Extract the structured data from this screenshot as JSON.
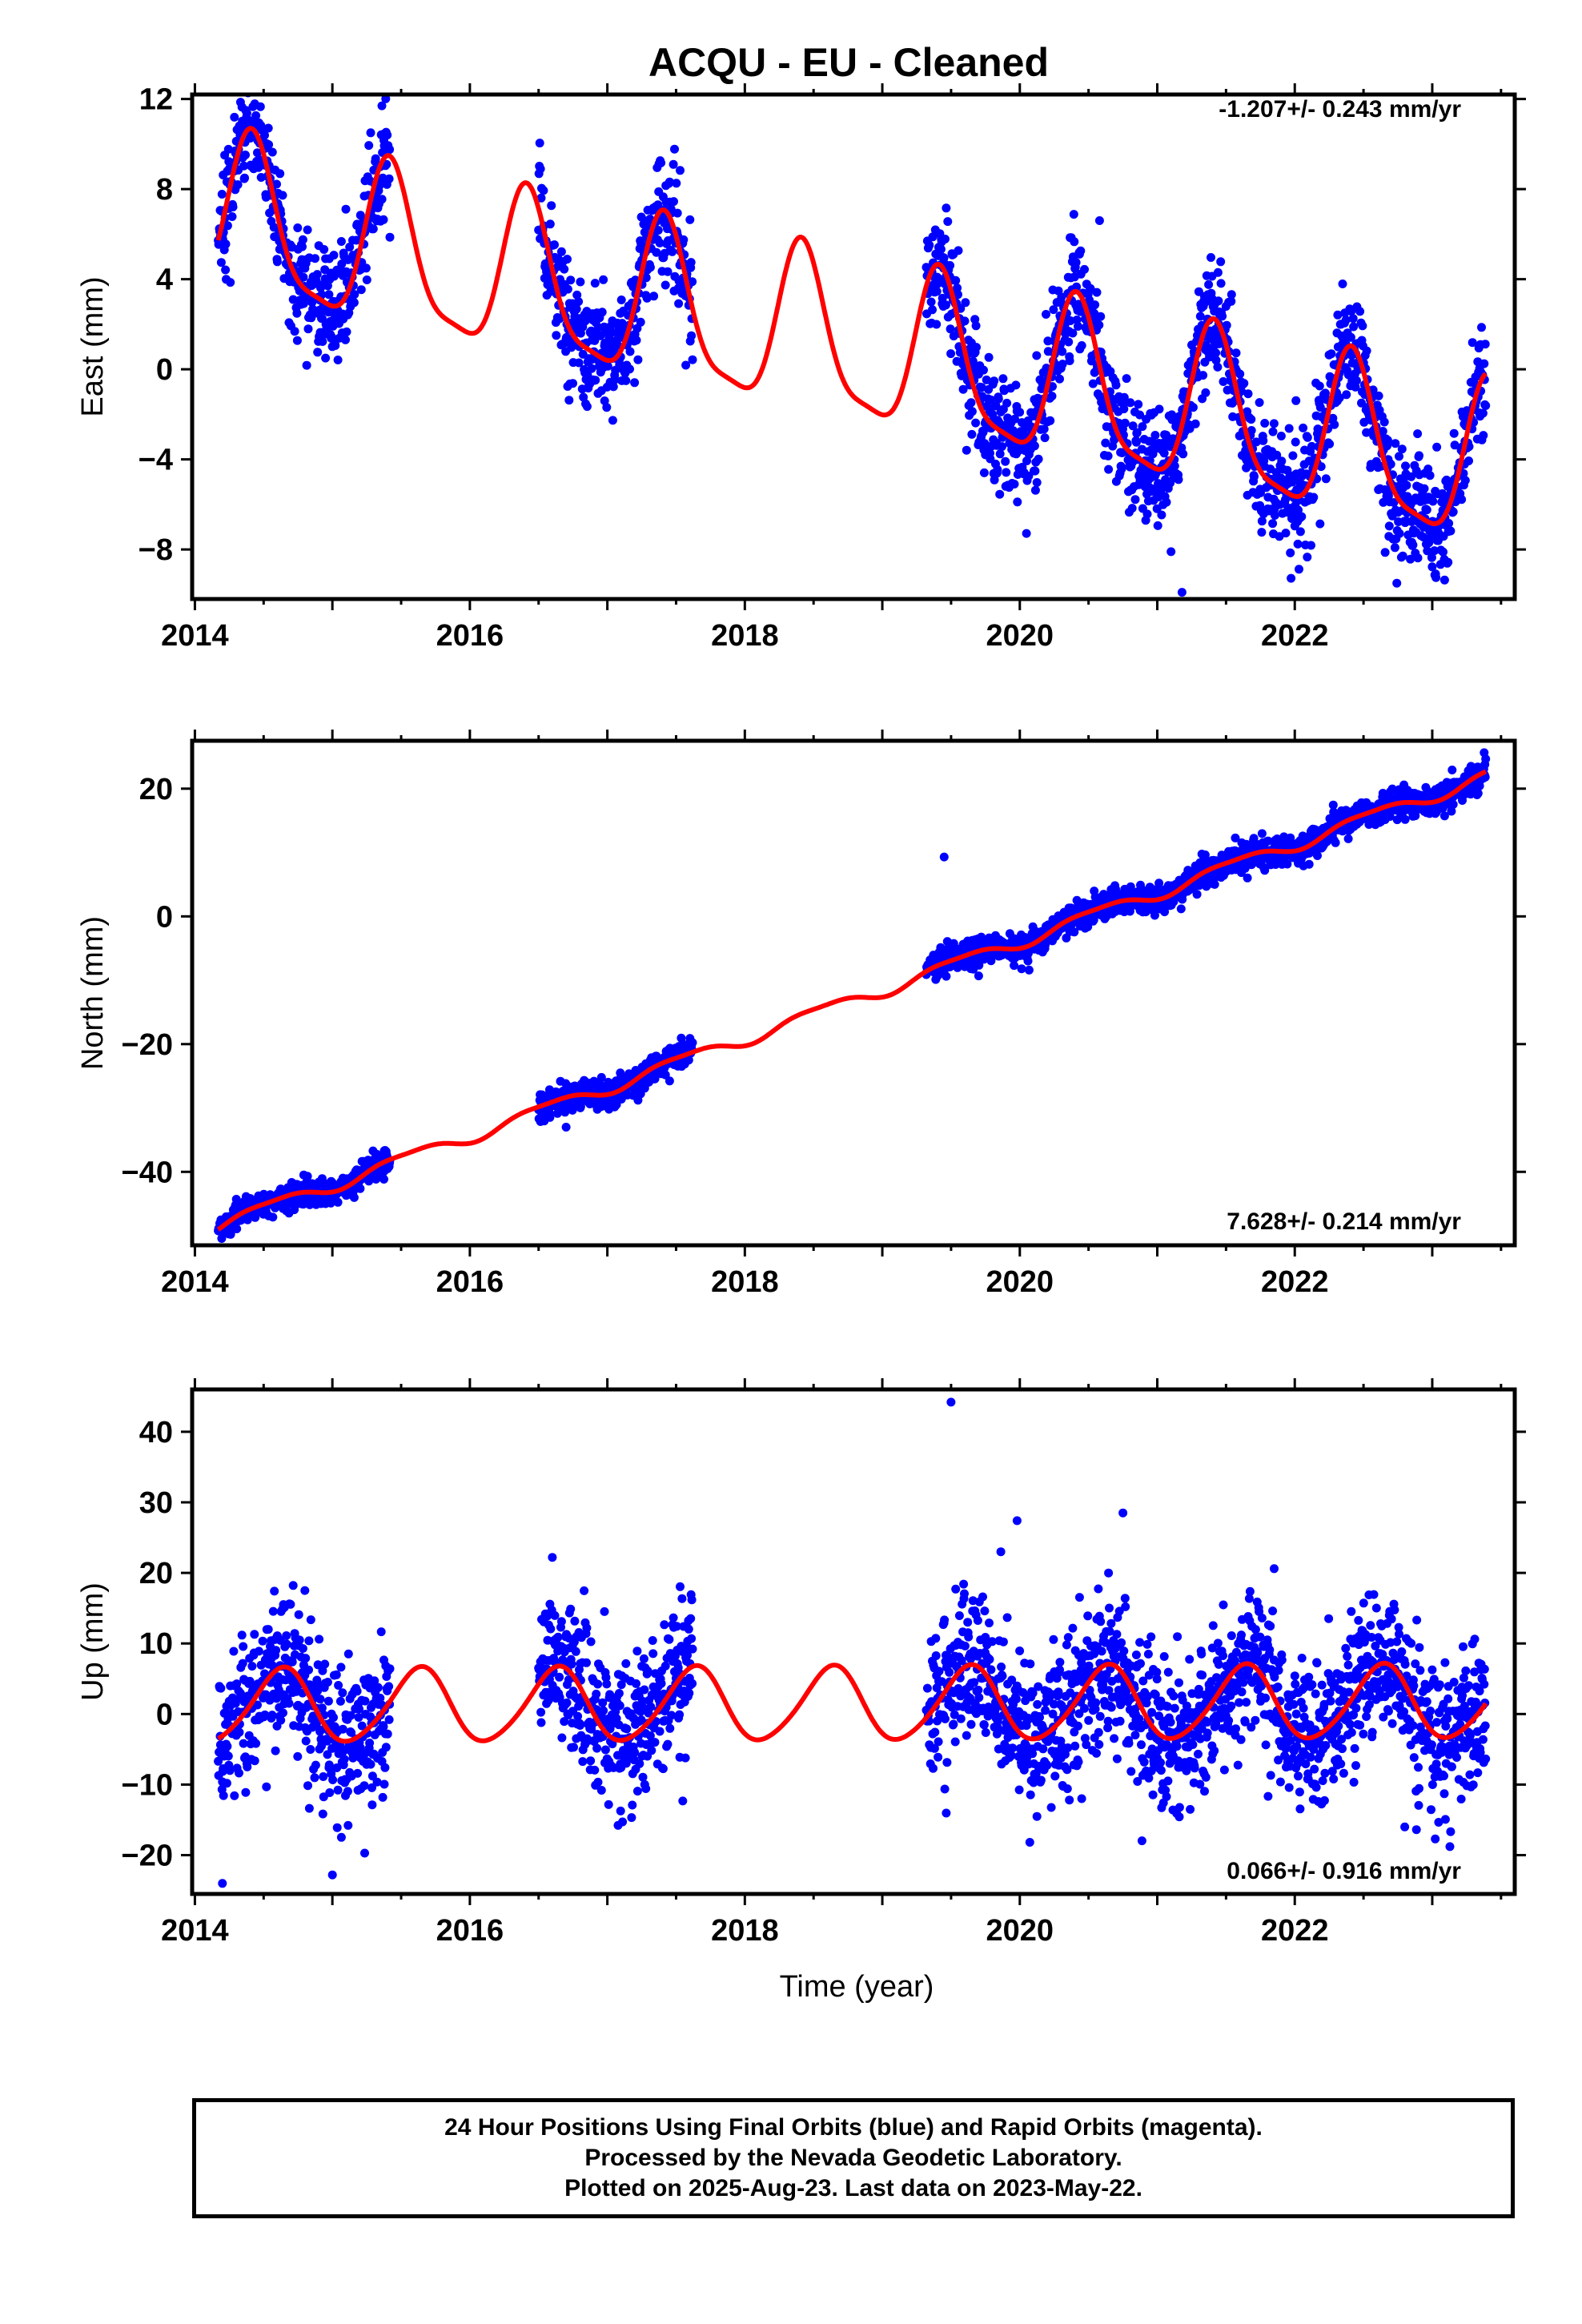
{
  "title": "ACQU  - EU - Cleaned",
  "colors": {
    "data": "#0000ff",
    "model": "#ff0000",
    "frame": "#000000"
  },
  "chart_data": [
    {
      "type": "scatter",
      "ylabel": "East (mm)",
      "xlabel": "",
      "rate": "-1.207+/- 0.243 mm/yr",
      "xlim": [
        2013.98,
        2023.6
      ],
      "ylim": [
        -10.2,
        12.2
      ],
      "xticks": [
        2014,
        2016,
        2018,
        2020,
        2022
      ],
      "xtick_labels": [
        "2014",
        "2016",
        "2018",
        "2020",
        "2022"
      ],
      "yticks": [
        -8,
        -4,
        0,
        4,
        8,
        12
      ],
      "ytick_labels": [
        "−8",
        "−4",
        "0",
        "4",
        "8",
        "12"
      ],
      "model": {
        "intercept": 6.6,
        "trend_mm_per_yr": -1.207,
        "annual_amp": 3.5,
        "annual_phase_peak": 0.42,
        "semiannual_amp": 0.9,
        "semiannual_phase_peak": 0.4
      },
      "data_segments": [
        [
          2014.17,
          2015.42
        ],
        [
          2016.5,
          2017.62
        ],
        [
          2019.32,
          2023.39
        ]
      ],
      "noise_sigma": 1.3,
      "outliers": [
        [
          2015.36,
          11.7
        ],
        [
          2021.18,
          -9.9
        ],
        [
          2021.1,
          -8.1
        ],
        [
          2014.95,
          0.5
        ],
        [
          2020.58,
          6.6
        ],
        [
          2016.98,
          -1.4
        ]
      ]
    },
    {
      "type": "scatter",
      "ylabel": "North (mm)",
      "xlabel": "",
      "rate": "7.628+/- 0.214 mm/yr",
      "xlim": [
        2013.98,
        2023.6
      ],
      "ylim": [
        -51.5,
        27.5
      ],
      "xticks": [
        2014,
        2016,
        2018,
        2020,
        2022
      ],
      "xtick_labels": [
        "2014",
        "2016",
        "2018",
        "2020",
        "2022"
      ],
      "yticks": [
        -40,
        -20,
        0,
        20
      ],
      "ytick_labels": [
        "−40",
        "−20",
        "0",
        "20"
      ],
      "model": {
        "intercept": -48.3,
        "trend_mm_per_yr": 7.628,
        "annual_amp": 1.0,
        "annual_phase_peak": 0.55,
        "semiannual_amp": 0.3,
        "semiannual_phase_peak": 0.3
      },
      "data_segments": [
        [
          2014.17,
          2015.42
        ],
        [
          2016.5,
          2017.62
        ],
        [
          2019.32,
          2023.39
        ]
      ],
      "noise_sigma": 1.1,
      "outliers": [
        [
          2019.45,
          9.3
        ],
        [
          2016.7,
          -33.0
        ]
      ]
    },
    {
      "type": "scatter",
      "ylabel": "Up (mm)",
      "xlabel": "Time (year)",
      "rate": "0.066+/- 0.916 mm/yr",
      "xlim": [
        2013.98,
        2023.6
      ],
      "ylim": [
        -25.5,
        46.0
      ],
      "xticks": [
        2014,
        2016,
        2018,
        2020,
        2022
      ],
      "xtick_labels": [
        "2014",
        "2016",
        "2018",
        "2020",
        "2022"
      ],
      "yticks": [
        -20,
        -10,
        0,
        10,
        20,
        30,
        40
      ],
      "ytick_labels": [
        "−20",
        "−10",
        "0",
        "10",
        "20",
        "30",
        "40"
      ],
      "model": {
        "intercept": 1.0,
        "trend_mm_per_yr": 0.066,
        "annual_amp": 5.2,
        "annual_phase_peak": 0.63,
        "semiannual_amp": 0.6,
        "semiannual_phase_peak": 0.2
      },
      "data_segments": [
        [
          2014.17,
          2015.42
        ],
        [
          2016.5,
          2017.62
        ],
        [
          2019.32,
          2023.39
        ]
      ],
      "noise_sigma": 5.2,
      "outliers": [
        [
          2019.5,
          44.2
        ],
        [
          2014.2,
          -24.0
        ],
        [
          2020.75,
          28.5
        ],
        [
          2016.6,
          22.2
        ],
        [
          2019.98,
          27.4
        ],
        [
          2014.8,
          17.5
        ],
        [
          2015.0,
          -22.8
        ],
        [
          2021.85,
          20.6
        ],
        [
          2020.45,
          -12.0
        ],
        [
          2022.8,
          -16.0
        ]
      ]
    }
  ],
  "footer": {
    "line1": "24 Hour Positions Using Final Orbits (blue) and Rapid Orbits (magenta).",
    "line2": "Processed by the Nevada Geodetic Laboratory.",
    "line3": "Plotted on 2025-Aug-23. Last data on 2023-May-22."
  }
}
